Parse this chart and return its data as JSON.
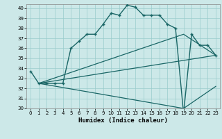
{
  "xlabel": "Humidex (Indice chaleur)",
  "xlim": [
    -0.5,
    23.5
  ],
  "ylim": [
    30,
    40.4
  ],
  "yticks": [
    30,
    31,
    32,
    33,
    34,
    35,
    36,
    37,
    38,
    39,
    40
  ],
  "xticks": [
    0,
    1,
    2,
    3,
    4,
    5,
    6,
    7,
    8,
    9,
    10,
    11,
    12,
    13,
    14,
    15,
    16,
    17,
    18,
    19,
    20,
    21,
    22,
    23
  ],
  "background_color": "#cce8e8",
  "grid_color": "#99cccc",
  "line_color": "#1a6666",
  "line1_x": [
    0,
    1,
    2,
    3,
    4,
    5,
    6,
    7,
    8,
    9,
    10,
    11,
    12,
    13,
    14,
    15,
    16,
    17,
    18,
    19,
    20,
    21,
    22,
    23
  ],
  "line1_y": [
    33.7,
    32.5,
    32.5,
    32.5,
    32.5,
    36.0,
    36.7,
    37.4,
    37.4,
    38.4,
    39.5,
    39.3,
    40.3,
    40.1,
    39.3,
    39.3,
    39.3,
    38.4,
    38.0,
    29.5,
    37.4,
    36.3,
    36.3,
    35.3
  ],
  "line2_x": [
    1,
    23
  ],
  "line2_y": [
    32.5,
    35.3
  ],
  "line3_x": [
    1,
    19,
    23
  ],
  "line3_y": [
    32.5,
    30.0,
    32.2
  ],
  "line4_x": [
    1,
    19,
    23
  ],
  "line4_y": [
    32.5,
    37.4,
    35.3
  ]
}
